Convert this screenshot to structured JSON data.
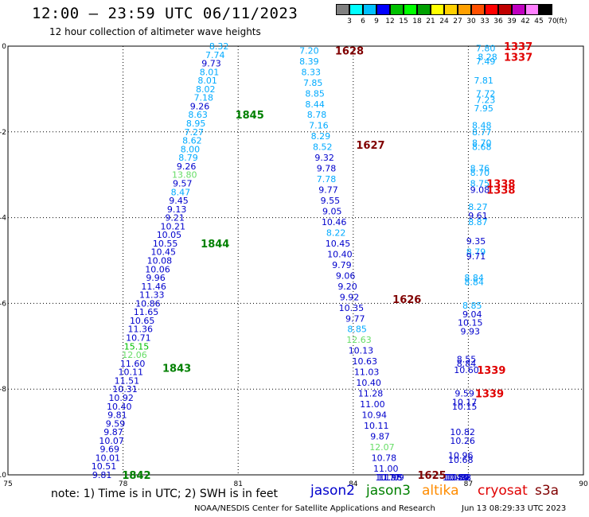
{
  "header": {
    "title": "12:00 – 23:59 UTC 06/11/2023",
    "subtitle": "12 hour collection of altimeter wave heights"
  },
  "colorbar": {
    "colors": [
      "#808080",
      "#00ffff",
      "#00c0ff",
      "#0000ff",
      "#00c000",
      "#00ff00",
      "#00a000",
      "#ffff00",
      "#ffd000",
      "#ffa000",
      "#ff5000",
      "#ff0000",
      "#c00000",
      "#c000c0",
      "#ff80ff",
      "#000000"
    ],
    "labels": [
      "3",
      "6",
      "9",
      "12",
      "15",
      "18",
      "21",
      "24",
      "27",
      "30",
      "33",
      "36",
      "39",
      "42",
      "45",
      "70"
    ],
    "unit": "(ft)"
  },
  "map": {
    "x_ticks": [
      "75",
      "78",
      "81",
      "84",
      "87",
      "90"
    ],
    "y_ticks": [
      "0",
      "-2",
      "-4",
      "-6",
      "-8",
      "-10"
    ],
    "lon_range": [
      75,
      90
    ],
    "lat_range": [
      -10,
      0
    ]
  },
  "satellite_colors": {
    "jason2": "#0000cc",
    "jason3": "#008000",
    "altika": "#ff8c00",
    "cryosat": "#e00000",
    "s3a": "#800000"
  },
  "tracks": [
    {
      "sat": "jason3",
      "points": [
        [
          80.5,
          -0.0,
          "8.32",
          "#00aaff"
        ],
        [
          80.4,
          -0.2,
          "7.74",
          "#00aaff"
        ],
        [
          80.3,
          -0.4,
          "9.73",
          "#0000cc"
        ],
        [
          80.25,
          -0.6,
          "8.01",
          "#00aaff"
        ],
        [
          80.2,
          -0.8,
          "8.01",
          "#00aaff"
        ],
        [
          80.15,
          -1.0,
          "8.02",
          "#00aaff"
        ],
        [
          80.1,
          -1.2,
          "7.18",
          "#00aaff"
        ],
        [
          80.0,
          -1.4,
          "9.26",
          "#0000cc"
        ],
        [
          79.95,
          -1.6,
          "8.63",
          "#00aaff"
        ],
        [
          79.9,
          -1.8,
          "8.95",
          "#00aaff"
        ],
        [
          79.85,
          -2.0,
          "7.27",
          "#00aaff"
        ],
        [
          79.8,
          -2.2,
          "8.62",
          "#00aaff"
        ],
        [
          79.75,
          -2.4,
          "8.00",
          "#00aaff"
        ],
        [
          79.7,
          -2.6,
          "8.79",
          "#00aaff"
        ],
        [
          79.65,
          -2.8,
          "9.26",
          "#0000cc"
        ],
        [
          79.6,
          -3.0,
          "13.80",
          "#66dd66"
        ],
        [
          79.55,
          -3.2,
          "9.57",
          "#0000cc"
        ],
        [
          79.5,
          -3.4,
          "8.47",
          "#00aaff"
        ],
        [
          79.45,
          -3.6,
          "9.45",
          "#0000cc"
        ],
        [
          79.4,
          -3.8,
          "9.13",
          "#0000cc"
        ],
        [
          79.35,
          -4.0,
          "9.21",
          "#0000cc"
        ],
        [
          79.3,
          -4.2,
          "10.21",
          "#0000cc"
        ],
        [
          79.2,
          -4.4,
          "10.05",
          "#0000cc"
        ],
        [
          79.1,
          -4.6,
          "10.55",
          "#0000cc"
        ],
        [
          79.05,
          -4.8,
          "10.45",
          "#0000cc"
        ],
        [
          78.95,
          -5.0,
          "10.08",
          "#0000cc"
        ],
        [
          78.9,
          -5.2,
          "10.06",
          "#0000cc"
        ],
        [
          78.85,
          -5.4,
          "9.96",
          "#0000cc"
        ],
        [
          78.8,
          -5.6,
          "11.46",
          "#0000cc"
        ],
        [
          78.75,
          -5.8,
          "11.33",
          "#0000cc"
        ],
        [
          78.65,
          -6.0,
          "10.86",
          "#0000cc"
        ],
        [
          78.6,
          -6.2,
          "11.65",
          "#0000cc"
        ],
        [
          78.5,
          -6.4,
          "10.65",
          "#0000cc"
        ],
        [
          78.45,
          -6.6,
          "11.36",
          "#0000cc"
        ],
        [
          78.4,
          -6.8,
          "10.71",
          "#0000cc"
        ],
        [
          78.35,
          -7.0,
          "15.15",
          "#00c000"
        ],
        [
          78.3,
          -7.2,
          "12.06",
          "#66dd66"
        ],
        [
          78.25,
          -7.4,
          "11.60",
          "#0000cc"
        ],
        [
          78.2,
          -7.6,
          "10.11",
          "#0000cc"
        ],
        [
          78.1,
          -7.8,
          "11.51",
          "#0000cc"
        ],
        [
          78.05,
          -8.0,
          "10.31",
          "#0000cc"
        ],
        [
          77.95,
          -8.2,
          "10.92",
          "#0000cc"
        ],
        [
          77.9,
          -8.4,
          "10.40",
          "#0000cc"
        ],
        [
          77.85,
          -8.6,
          "9.81",
          "#0000cc"
        ],
        [
          77.8,
          -8.8,
          "9.59",
          "#0000cc"
        ],
        [
          77.75,
          -9.0,
          "9.87",
          "#0000cc"
        ],
        [
          77.7,
          -9.2,
          "10.07",
          "#0000cc"
        ],
        [
          77.65,
          -9.4,
          "9.69",
          "#0000cc"
        ],
        [
          77.6,
          -9.6,
          "10.01",
          "#0000cc"
        ],
        [
          77.5,
          -9.8,
          "10.51",
          "#0000cc"
        ],
        [
          77.45,
          -10.0,
          "9.81",
          "#0000cc"
        ]
      ]
    },
    {
      "sat": "s3a",
      "points": [
        [
          82.85,
          -0.1,
          "7.20",
          "#00aaff"
        ],
        [
          82.85,
          -0.35,
          "8.39",
          "#00aaff"
        ],
        [
          82.9,
          -0.6,
          "8.33",
          "#00aaff"
        ],
        [
          82.95,
          -0.85,
          "7.85",
          "#00aaff"
        ],
        [
          83.0,
          -1.1,
          "8.85",
          "#00aaff"
        ],
        [
          83.0,
          -1.35,
          "8.44",
          "#00aaff"
        ],
        [
          83.05,
          -1.6,
          "8.78",
          "#00aaff"
        ],
        [
          83.1,
          -1.85,
          "7.16",
          "#00aaff"
        ],
        [
          83.15,
          -2.1,
          "8.29",
          "#00aaff"
        ],
        [
          83.2,
          -2.35,
          "8.52",
          "#00aaff"
        ],
        [
          83.25,
          -2.6,
          "9.32",
          "#0000cc"
        ],
        [
          83.3,
          -2.85,
          "9.78",
          "#0000cc"
        ],
        [
          83.3,
          -3.1,
          "7.78",
          "#00aaff"
        ],
        [
          83.35,
          -3.35,
          "9.77",
          "#0000cc"
        ],
        [
          83.4,
          -3.6,
          "9.55",
          "#0000cc"
        ],
        [
          83.45,
          -3.85,
          "9.05",
          "#0000cc"
        ],
        [
          83.5,
          -4.1,
          "10.46",
          "#0000cc"
        ],
        [
          83.55,
          -4.35,
          "8.22",
          "#00aaff"
        ],
        [
          83.6,
          -4.6,
          "10.45",
          "#0000cc"
        ],
        [
          83.65,
          -4.85,
          "10.40",
          "#0000cc"
        ],
        [
          83.7,
          -5.1,
          "9.79",
          "#0000cc"
        ],
        [
          83.8,
          -5.35,
          "9.06",
          "#0000cc"
        ],
        [
          83.85,
          -5.6,
          "9.20",
          "#0000cc"
        ],
        [
          83.9,
          -5.85,
          "9.92",
          "#0000cc"
        ],
        [
          83.95,
          -6.1,
          "10.35",
          "#0000cc"
        ],
        [
          84.05,
          -6.35,
          "9.77",
          "#0000cc"
        ],
        [
          84.1,
          -6.6,
          "8.85",
          "#00aaff"
        ],
        [
          84.15,
          -6.85,
          "12.63",
          "#66dd66"
        ],
        [
          84.2,
          -7.1,
          "10.13",
          "#0000cc"
        ],
        [
          84.3,
          -7.35,
          "10.63",
          "#0000cc"
        ],
        [
          84.35,
          -7.6,
          "11.03",
          "#0000cc"
        ],
        [
          84.4,
          -7.85,
          "10.40",
          "#0000cc"
        ],
        [
          84.45,
          -8.1,
          "11.28",
          "#0000cc"
        ],
        [
          84.5,
          -8.35,
          "11.00",
          "#0000cc"
        ],
        [
          84.55,
          -8.6,
          "10.94",
          "#0000cc"
        ],
        [
          84.6,
          -8.85,
          "10.11",
          "#0000cc"
        ],
        [
          84.7,
          -9.1,
          "9.87",
          "#0000cc"
        ],
        [
          84.75,
          -9.35,
          "12.07",
          "#66dd66"
        ],
        [
          84.8,
          -9.6,
          "10.78",
          "#0000cc"
        ],
        [
          84.85,
          -9.85,
          "11.00",
          "#0000cc"
        ],
        [
          84.9,
          -10.1,
          "10.77",
          "#0000cc"
        ],
        [
          84.95,
          -10.4,
          "11.98",
          "#0000cc"
        ],
        [
          85.0,
          -10.6,
          "11.09",
          "#0000cc"
        ]
      ]
    },
    {
      "sat": "cryosat",
      "points": [
        [
          87.45,
          -0.05,
          "7.80",
          "#00aaff"
        ],
        [
          87.5,
          -0.25,
          "8.28",
          "#00aaff"
        ],
        [
          87.45,
          -0.35,
          "7.49",
          "#00aaff"
        ],
        [
          87.4,
          -0.8,
          "7.81",
          "#00aaff"
        ],
        [
          87.45,
          -1.1,
          "7.72",
          "#00aaff"
        ],
        [
          87.45,
          -1.25,
          "7.23",
          "#00aaff"
        ],
        [
          87.4,
          -1.45,
          "7.95",
          "#00aaff"
        ],
        [
          87.35,
          -1.85,
          "8.48",
          "#00aaff"
        ],
        [
          87.35,
          -2.0,
          "8.77",
          "#00aaff"
        ],
        [
          87.35,
          -2.25,
          "8.70",
          "#00aaff"
        ],
        [
          87.35,
          -2.35,
          "8.68",
          "#00aaff"
        ],
        [
          87.3,
          -2.85,
          "8.76",
          "#00aaff"
        ],
        [
          87.3,
          -2.95,
          "8.70",
          "#00aaff"
        ],
        [
          87.3,
          -3.2,
          "8.75",
          "#00aaff"
        ],
        [
          87.3,
          -3.35,
          "9.08",
          "#0000cc"
        ],
        [
          87.25,
          -3.75,
          "8.27",
          "#00aaff"
        ],
        [
          87.25,
          -3.95,
          "9.61",
          "#0000cc"
        ],
        [
          87.25,
          -4.1,
          "8.87",
          "#00aaff"
        ],
        [
          87.2,
          -4.55,
          "9.35",
          "#0000cc"
        ],
        [
          87.2,
          -4.8,
          "8.79",
          "#00aaff"
        ],
        [
          87.2,
          -4.9,
          "9.71",
          "#0000cc"
        ],
        [
          87.15,
          -5.4,
          "8.84",
          "#00aaff"
        ],
        [
          87.15,
          -5.5,
          "8.84",
          "#00aaff"
        ],
        [
          87.1,
          -6.05,
          "8.85",
          "#00aaff"
        ],
        [
          87.1,
          -6.25,
          "9.04",
          "#0000cc"
        ],
        [
          87.05,
          -6.45,
          "10.15",
          "#0000cc"
        ],
        [
          87.05,
          -6.65,
          "9.93",
          "#0000cc"
        ],
        [
          86.95,
          -7.3,
          "8.55",
          "#0000cc"
        ],
        [
          86.95,
          -7.4,
          "8.84",
          "#0000cc"
        ],
        [
          86.95,
          -7.55,
          "10.60",
          "#0000cc"
        ],
        [
          86.9,
          -8.1,
          "9.59",
          "#0000cc"
        ],
        [
          86.9,
          -8.3,
          "10.17",
          "#0000cc"
        ],
        [
          86.9,
          -8.4,
          "10.15",
          "#0000cc"
        ],
        [
          86.85,
          -9.0,
          "10.82",
          "#0000cc"
        ],
        [
          86.85,
          -9.2,
          "10.26",
          "#0000cc"
        ],
        [
          86.8,
          -9.55,
          "10.96",
          "#0000cc"
        ],
        [
          86.8,
          -9.65,
          "10.68",
          "#0000cc"
        ],
        [
          86.75,
          -10.2,
          "10.93",
          "#0000cc"
        ],
        [
          86.75,
          -10.35,
          "10.22",
          "#0000cc"
        ],
        [
          86.7,
          -10.95,
          "10.50",
          "#0000cc"
        ],
        [
          86.7,
          -11.05,
          "10.84",
          "#0000cc"
        ],
        [
          86.7,
          -11.1,
          "10.57",
          "#0000cc"
        ],
        [
          86.65,
          -11.5,
          "11.48",
          "#0000cc"
        ]
      ]
    }
  ],
  "time_labels": [
    {
      "lon": 81.3,
      "lat": -1.6,
      "text": "1845",
      "sat": "jason3"
    },
    {
      "lon": 80.4,
      "lat": -4.6,
      "text": "1844",
      "sat": "jason3"
    },
    {
      "lon": 79.4,
      "lat": -7.5,
      "text": "1843",
      "sat": "jason3"
    },
    {
      "lon": 78.35,
      "lat": -10.0,
      "text": "1842",
      "sat": "jason3"
    },
    {
      "lon": 83.9,
      "lat": -0.1,
      "text": "1628",
      "sat": "s3a"
    },
    {
      "lon": 84.45,
      "lat": -2.3,
      "text": "1627",
      "sat": "s3a"
    },
    {
      "lon": 85.4,
      "lat": -5.9,
      "text": "1626",
      "sat": "s3a"
    },
    {
      "lon": 86.05,
      "lat": -10.0,
      "text": "1625",
      "sat": "s3a"
    },
    {
      "lon": 88.3,
      "lat": 0.0,
      "text": "1337",
      "sat": "cryosat"
    },
    {
      "lon": 88.3,
      "lat": -0.25,
      "text": "1337",
      "sat": "cryosat"
    },
    {
      "lon": 87.85,
      "lat": -3.2,
      "text": "1338",
      "sat": "cryosat"
    },
    {
      "lon": 87.85,
      "lat": -3.35,
      "text": "1338",
      "sat": "cryosat"
    },
    {
      "lon": 87.6,
      "lat": -7.55,
      "text": "1339",
      "sat": "cryosat"
    },
    {
      "lon": 87.55,
      "lat": -8.1,
      "text": "1339",
      "sat": "cryosat"
    }
  ],
  "footer": {
    "note": "note:  1) Time is in UTC;  2) SWH is in feet",
    "legend": [
      {
        "key": "jason2",
        "label": "jason2"
      },
      {
        "key": "jason3",
        "label": "jason3"
      },
      {
        "key": "altika",
        "label": "altika"
      },
      {
        "key": "cryosat",
        "label": "cryosat"
      },
      {
        "key": "s3a",
        "label": "s3a"
      }
    ],
    "credit": "NOAA/NESDIS Center for Satellite Applications and Research",
    "stamp": "Jun 13 08:29:33 UTC 2023"
  }
}
